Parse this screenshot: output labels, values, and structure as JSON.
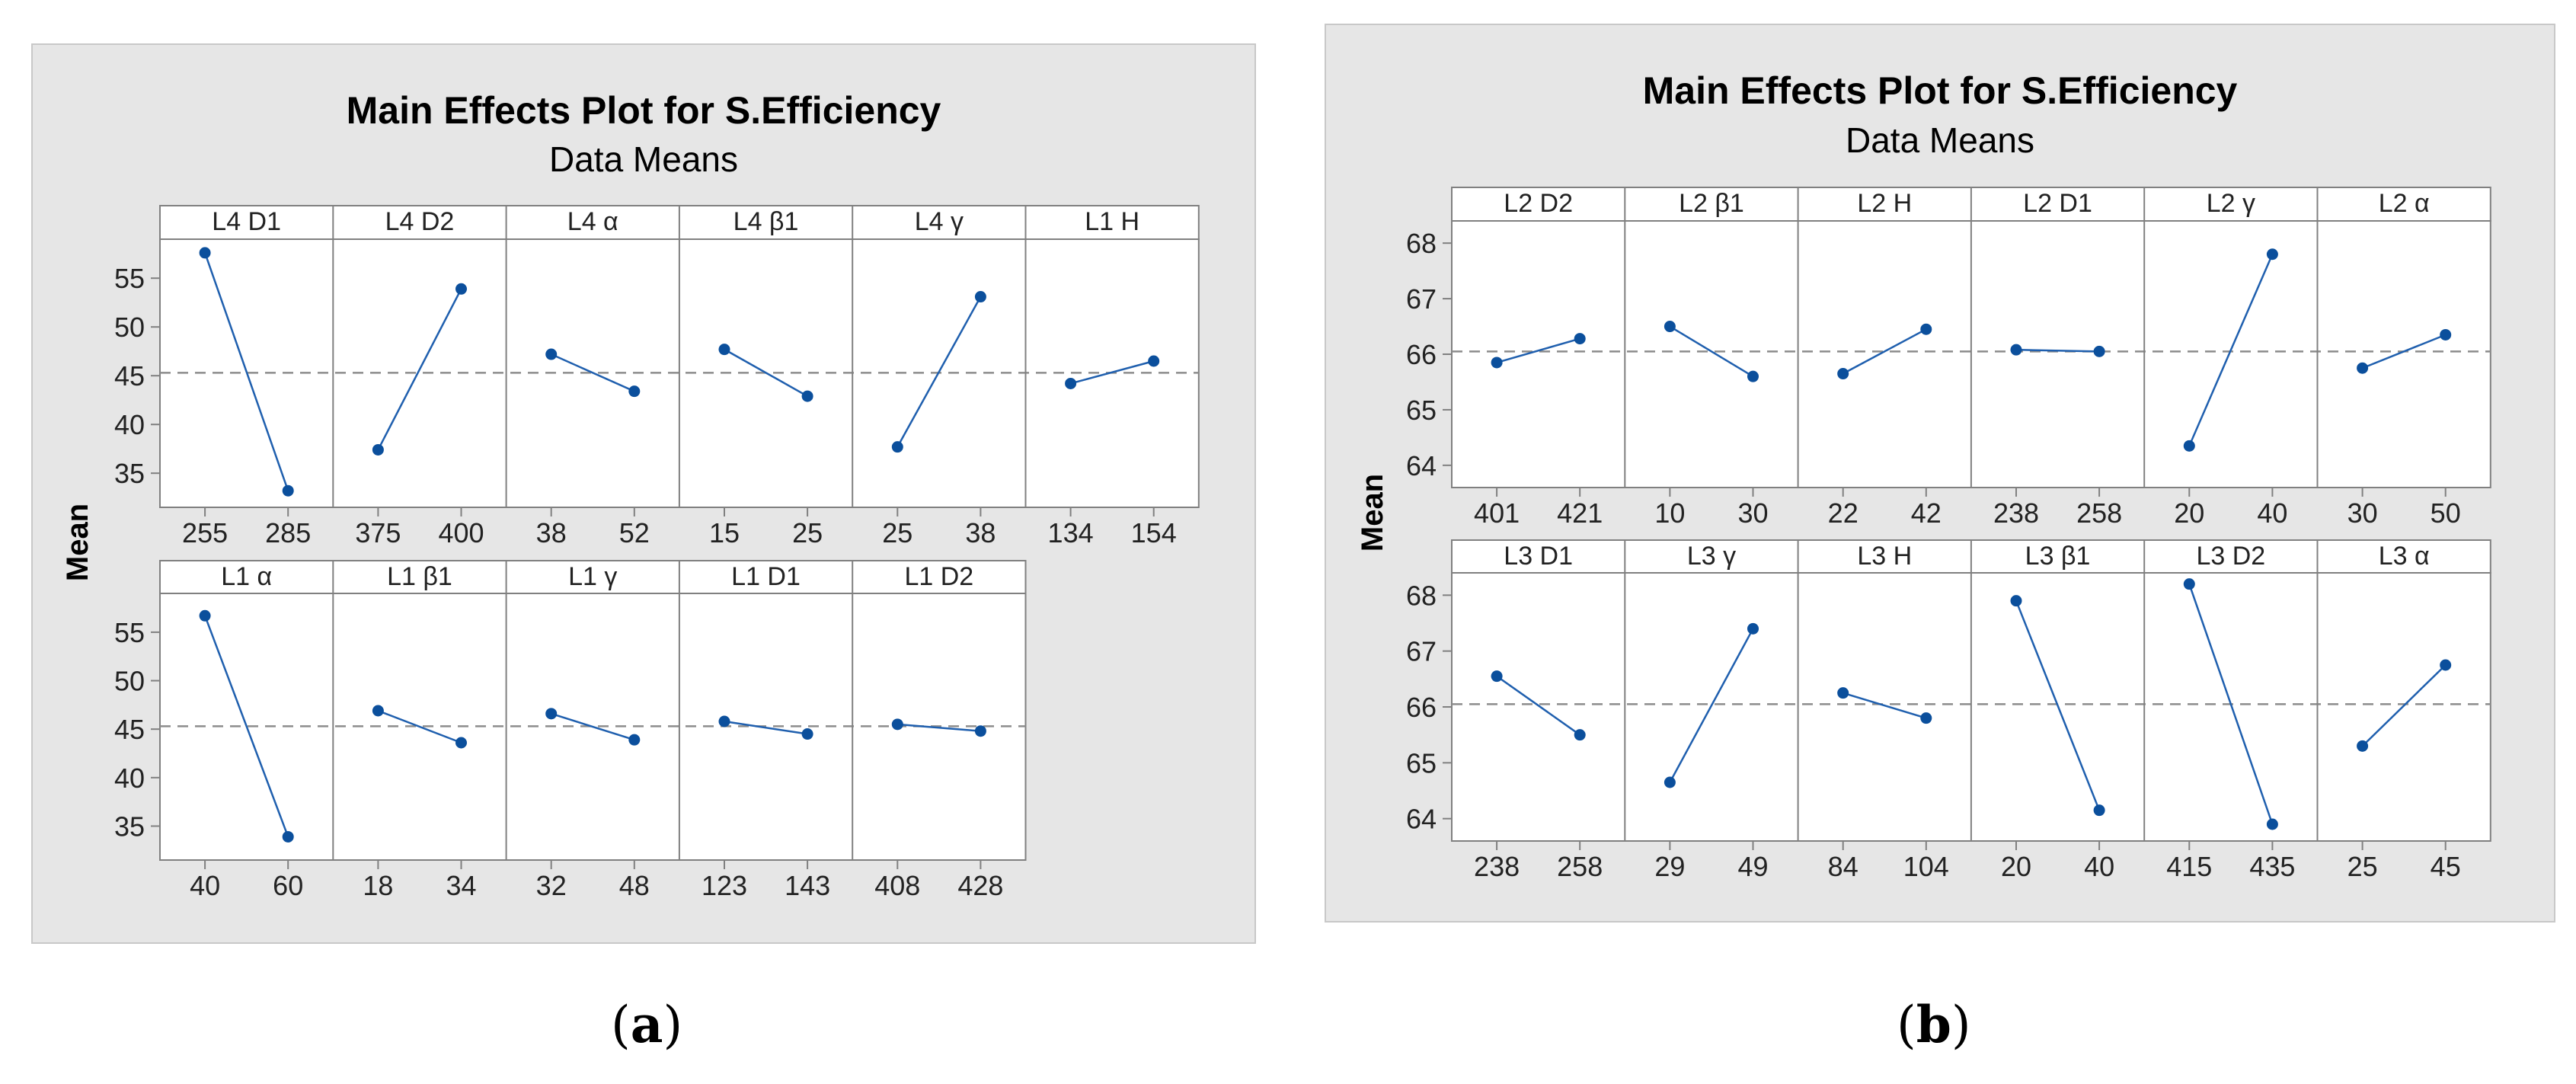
{
  "colors": {
    "panel_bg": "#e6e6e6",
    "plot_bg": "#ffffff",
    "line": "#1f5fae",
    "point": "#0b4f9c",
    "axis": "#808080",
    "ref_line": "#8c8c8c",
    "text": "#000000"
  },
  "captions": {
    "a_label": "a",
    "b_label": "b"
  },
  "chart_data": [
    {
      "id": "a",
      "type": "line",
      "title": "Main Effects Plot for S.Efficiency",
      "subtitle": "Data Means",
      "ylabel": "Mean",
      "reference_mean": 45.3,
      "rows": [
        {
          "ylim": [
            31.5,
            59
          ],
          "yticks": [
            35,
            40,
            45,
            50,
            55
          ],
          "yticklabels": [
            "35",
            "40",
            "45",
            "50",
            "55"
          ],
          "panels": [
            {
              "label": "L4 D1",
              "x": [
                "255",
                "285"
              ],
              "y": [
                57.6,
                33.2
              ]
            },
            {
              "label": "L4 D2",
              "x": [
                "375",
                "400"
              ],
              "y": [
                37.4,
                53.9
              ]
            },
            {
              "label": "L4 α",
              "x": [
                "38",
                "52"
              ],
              "y": [
                47.2,
                43.4
              ]
            },
            {
              "label": "L4 β1",
              "x": [
                "15",
                "25"
              ],
              "y": [
                47.7,
                42.9
              ]
            },
            {
              "label": "L4 γ",
              "x": [
                "25",
                "38"
              ],
              "y": [
                37.7,
                53.1
              ]
            },
            {
              "label": "L1 H",
              "x": [
                "134",
                "154"
              ],
              "y": [
                44.2,
                46.5
              ]
            }
          ]
        },
        {
          "ylim": [
            31.5,
            59
          ],
          "yticks": [
            35,
            40,
            45,
            50,
            55
          ],
          "yticklabels": [
            "35",
            "40",
            "45",
            "50",
            "55"
          ],
          "panels": [
            {
              "label": "L1 α",
              "x": [
                "40",
                "60"
              ],
              "y": [
                56.7,
                33.9
              ]
            },
            {
              "label": "L1 β1",
              "x": [
                "18",
                "34"
              ],
              "y": [
                46.9,
                43.6
              ]
            },
            {
              "label": "L1 γ",
              "x": [
                "32",
                "48"
              ],
              "y": [
                46.6,
                43.9
              ]
            },
            {
              "label": "L1 D1",
              "x": [
                "123",
                "143"
              ],
              "y": [
                45.8,
                44.5
              ]
            },
            {
              "label": "L1 D2",
              "x": [
                "408",
                "428"
              ],
              "y": [
                45.5,
                44.8
              ]
            }
          ]
        }
      ]
    },
    {
      "id": "b",
      "type": "line",
      "title": "Main Effects Plot for S.Efficiency",
      "subtitle": "Data Means",
      "ylabel": "Mean",
      "reference_mean": 66.05,
      "rows": [
        {
          "ylim": [
            63.6,
            68.4
          ],
          "yticks": [
            64,
            65,
            66,
            67,
            68
          ],
          "yticklabels": [
            "64",
            "65",
            "66",
            "67",
            "68"
          ],
          "panels": [
            {
              "label": "L2 D2",
              "x": [
                "401",
                "421"
              ],
              "y": [
                65.85,
                66.28
              ]
            },
            {
              "label": "L2 β1",
              "x": [
                "10",
                "30"
              ],
              "y": [
                66.5,
                65.6
              ]
            },
            {
              "label": "L2 H",
              "x": [
                "22",
                "42"
              ],
              "y": [
                65.65,
                66.45
              ]
            },
            {
              "label": "L2 D1",
              "x": [
                "238",
                "258"
              ],
              "y": [
                66.08,
                66.05
              ]
            },
            {
              "label": "L2 γ",
              "x": [
                "20",
                "40"
              ],
              "y": [
                64.35,
                67.8
              ]
            },
            {
              "label": "L2 α",
              "x": [
                "30",
                "50"
              ],
              "y": [
                65.75,
                66.35
              ]
            }
          ]
        },
        {
          "ylim": [
            63.6,
            68.4
          ],
          "yticks": [
            64,
            65,
            66,
            67,
            68
          ],
          "yticklabels": [
            "64",
            "65",
            "66",
            "67",
            "68"
          ],
          "panels": [
            {
              "label": "L3 D1",
              "x": [
                "238",
                "258"
              ],
              "y": [
                66.55,
                65.5
              ]
            },
            {
              "label": "L3 γ",
              "x": [
                "29",
                "49"
              ],
              "y": [
                64.65,
                67.4
              ]
            },
            {
              "label": "L3 H",
              "x": [
                "84",
                "104"
              ],
              "y": [
                66.25,
                65.8
              ]
            },
            {
              "label": "L3 β1",
              "x": [
                "20",
                "40"
              ],
              "y": [
                67.9,
                64.15
              ]
            },
            {
              "label": "L3 D2",
              "x": [
                "415",
                "435"
              ],
              "y": [
                68.2,
                63.9
              ]
            },
            {
              "label": "L3 α",
              "x": [
                "25",
                "45"
              ],
              "y": [
                65.3,
                66.75
              ]
            }
          ]
        }
      ]
    }
  ]
}
